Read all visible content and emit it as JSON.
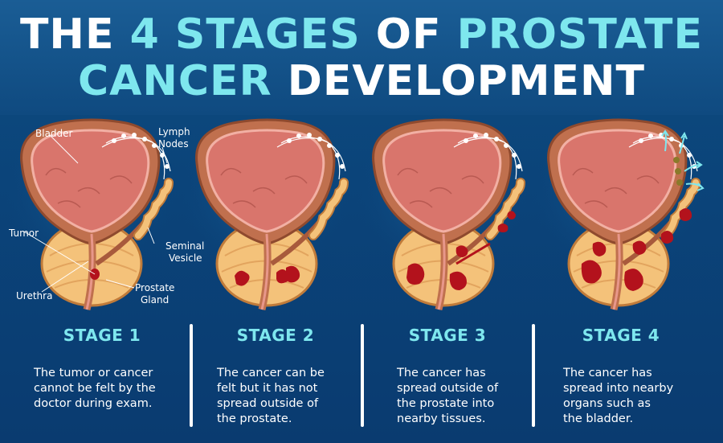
{
  "title": {
    "line1_a": "THE ",
    "line1_b": "4 STAGES",
    "line1_c": " OF ",
    "line1_d": "PROSTATE",
    "line2_a": "CANCER",
    "line2_b": " DEVELOPMENT"
  },
  "labels": {
    "bladder": "Bladder",
    "lymph_nodes_1": "Lymph",
    "lymph_nodes_2": "Nodes",
    "tumor": "Tumor",
    "seminal_vesicle_1": "Seminal",
    "seminal_vesicle_2": "Vesicle",
    "urethra": "Urethra",
    "prostate_gland_1": "Prostate",
    "prostate_gland_2": "Gland"
  },
  "stages": [
    {
      "title": "STAGE 1",
      "desc_lines": [
        "The tumor or cancer",
        "cannot be felt by the",
        "doctor during exam."
      ]
    },
    {
      "title": "STAGE 2",
      "desc_lines": [
        "The cancer can be",
        "felt but it has not",
        "spread outside of",
        "the prostate."
      ]
    },
    {
      "title": "STAGE 3",
      "desc_lines": [
        "The cancer has",
        "spread outside of",
        "the prostate into",
        "nearby tissues."
      ]
    },
    {
      "title": "STAGE 4",
      "desc_lines": [
        "The cancer has",
        "spread into nearby",
        "organs such as",
        "the bladder."
      ]
    }
  ],
  "colors": {
    "background": "#0b447a",
    "accent_cyan": "#7ee7ee",
    "bladder_outer": "#c0704e",
    "bladder_inner": "#d9756c",
    "prostate": "#f4c27a",
    "tumor": "#b3121c"
  }
}
